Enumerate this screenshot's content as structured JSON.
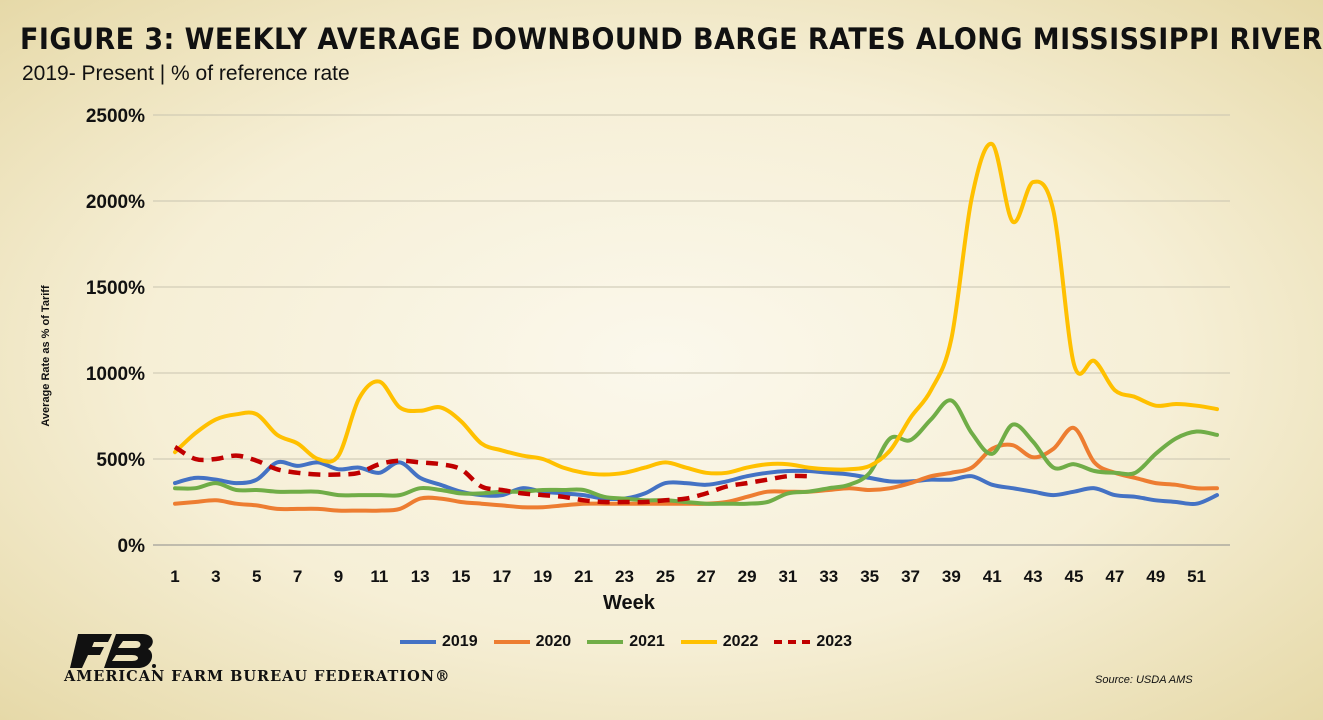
{
  "header": {
    "title": "FIGURE 3: WEEKLY AVERAGE DOWNBOUND BARGE RATES ALONG MISSISSIPPI RIVER",
    "subtitle": "2019- Present | % of reference rate"
  },
  "footer": {
    "organization": "AMERICAN FARM BUREAU FEDERATION®",
    "source": "Source: USDA AMS",
    "logo_icon": "fb-logo-icon"
  },
  "chart_data": {
    "type": "line",
    "xlabel": "Week",
    "ylabel": "Average Rate as % of Tariff",
    "ylim": [
      0,
      2500
    ],
    "yticks": [
      0,
      500,
      1000,
      1500,
      2000,
      2500
    ],
    "ytick_labels": [
      "0%",
      "500%",
      "1000%",
      "1500%",
      "2000%",
      "2500%"
    ],
    "xlim": [
      1,
      52
    ],
    "xticks": [
      1,
      3,
      5,
      7,
      9,
      11,
      13,
      15,
      17,
      19,
      21,
      23,
      25,
      27,
      29,
      31,
      33,
      35,
      37,
      39,
      41,
      43,
      45,
      47,
      49,
      51
    ],
    "grid": "horizontal",
    "legend_position": "bottom",
    "series": [
      {
        "name": "2019",
        "color": "#4472C4",
        "dashed": false,
        "x": [
          1,
          2,
          3,
          4,
          5,
          6,
          7,
          8,
          9,
          10,
          11,
          12,
          13,
          14,
          15,
          16,
          17,
          18,
          19,
          20,
          21,
          22,
          23,
          24,
          25,
          26,
          27,
          28,
          29,
          30,
          31,
          32,
          33,
          34,
          35,
          36,
          37,
          38,
          39,
          40,
          41,
          42,
          43,
          44,
          45,
          46,
          47,
          48,
          49,
          50,
          51,
          52
        ],
        "values": [
          360,
          390,
          380,
          360,
          380,
          480,
          460,
          480,
          440,
          450,
          420,
          480,
          390,
          350,
          310,
          290,
          290,
          330,
          310,
          300,
          290,
          270,
          270,
          300,
          360,
          360,
          350,
          370,
          400,
          420,
          430,
          430,
          420,
          410,
          390,
          370,
          370,
          380,
          380,
          400,
          350,
          330,
          310,
          290,
          310,
          330,
          290,
          280,
          260,
          250,
          240,
          290
        ]
      },
      {
        "name": "2020",
        "color": "#ED7D31",
        "dashed": false,
        "x": [
          1,
          2,
          3,
          4,
          5,
          6,
          7,
          8,
          9,
          10,
          11,
          12,
          13,
          14,
          15,
          16,
          17,
          18,
          19,
          20,
          21,
          22,
          23,
          24,
          25,
          26,
          27,
          28,
          29,
          30,
          31,
          32,
          33,
          34,
          35,
          36,
          37,
          38,
          39,
          40,
          41,
          42,
          43,
          44,
          45,
          46,
          47,
          48,
          49,
          50,
          51,
          52
        ],
        "values": [
          240,
          250,
          260,
          240,
          230,
          210,
          210,
          210,
          200,
          200,
          200,
          210,
          270,
          270,
          250,
          240,
          230,
          220,
          220,
          230,
          240,
          240,
          240,
          240,
          240,
          240,
          240,
          250,
          280,
          310,
          310,
          310,
          320,
          330,
          320,
          330,
          360,
          400,
          420,
          450,
          560,
          580,
          510,
          560,
          680,
          480,
          420,
          390,
          360,
          350,
          330,
          330
        ]
      },
      {
        "name": "2021",
        "color": "#70AD47",
        "dashed": false,
        "x": [
          1,
          2,
          3,
          4,
          5,
          6,
          7,
          8,
          9,
          10,
          11,
          12,
          13,
          14,
          15,
          16,
          17,
          18,
          19,
          20,
          21,
          22,
          23,
          24,
          25,
          26,
          27,
          28,
          29,
          30,
          31,
          32,
          33,
          34,
          35,
          36,
          37,
          38,
          39,
          40,
          41,
          42,
          43,
          44,
          45,
          46,
          47,
          48,
          49,
          50,
          51,
          52
        ],
        "values": [
          330,
          330,
          360,
          320,
          320,
          310,
          310,
          310,
          290,
          290,
          290,
          290,
          330,
          320,
          300,
          300,
          310,
          310,
          320,
          320,
          320,
          280,
          270,
          260,
          260,
          250,
          240,
          240,
          240,
          250,
          300,
          310,
          330,
          350,
          420,
          620,
          610,
          730,
          840,
          650,
          530,
          700,
          600,
          450,
          470,
          430,
          420,
          420,
          530,
          620,
          660,
          640
        ]
      },
      {
        "name": "2022",
        "color": "#FFC000",
        "dashed": false,
        "x": [
          1,
          2,
          3,
          4,
          5,
          6,
          7,
          8,
          9,
          10,
          11,
          12,
          13,
          14,
          15,
          16,
          17,
          18,
          19,
          20,
          21,
          22,
          23,
          24,
          25,
          26,
          27,
          28,
          29,
          30,
          31,
          32,
          33,
          34,
          35,
          36,
          37,
          38,
          39,
          40,
          41,
          42,
          43,
          44,
          45,
          46,
          47,
          48,
          49,
          50,
          51,
          52
        ],
        "values": [
          540,
          650,
          730,
          760,
          760,
          640,
          590,
          500,
          520,
          850,
          950,
          800,
          780,
          800,
          720,
          590,
          550,
          520,
          500,
          450,
          420,
          410,
          420,
          450,
          480,
          450,
          420,
          420,
          450,
          470,
          470,
          450,
          440,
          440,
          460,
          550,
          740,
          900,
          1200,
          2020,
          2330,
          1880,
          2110,
          1940,
          1050,
          1070,
          900,
          860,
          810,
          820,
          810,
          790
        ]
      },
      {
        "name": "2023",
        "color": "#C00000",
        "dashed": true,
        "x": [
          1,
          2,
          3,
          4,
          5,
          6,
          7,
          8,
          9,
          10,
          11,
          12,
          13,
          14,
          15,
          16,
          17,
          18,
          19,
          20,
          21,
          22,
          23,
          24,
          25,
          26,
          27,
          28,
          29,
          30,
          31,
          32
        ],
        "values": [
          570,
          500,
          500,
          520,
          490,
          440,
          420,
          410,
          410,
          420,
          470,
          490,
          480,
          470,
          440,
          340,
          320,
          300,
          290,
          280,
          260,
          250,
          250,
          250,
          260,
          270,
          300,
          340,
          360,
          380,
          400,
          400
        ]
      }
    ]
  }
}
